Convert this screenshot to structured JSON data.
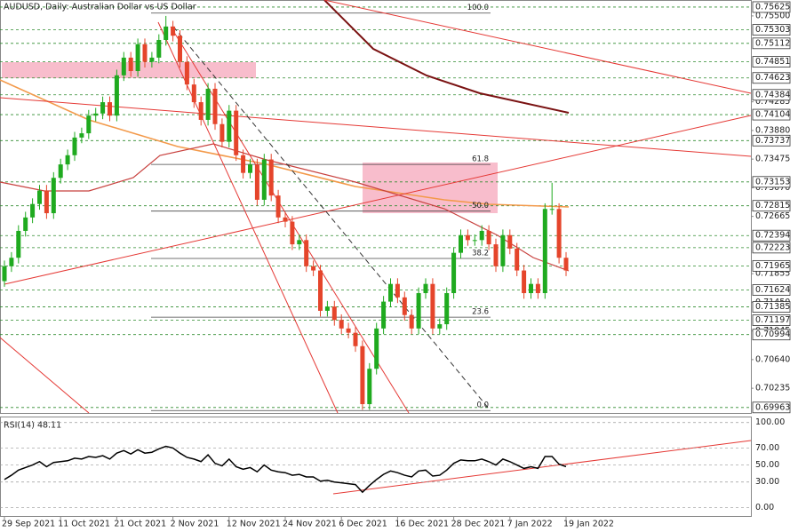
{
  "chart_data": [
    {
      "type": "candlestick",
      "title": "AUDUSD, Daily: Australian Dollar vs US Dollar",
      "categories": [
        "29 Sep 2021",
        null,
        null,
        null,
        null,
        null,
        null,
        null,
        "11 Oct 2021",
        null,
        null,
        null,
        null,
        null,
        null,
        null,
        "21 Oct 2021",
        null,
        null,
        null,
        null,
        null,
        null,
        null,
        "2 Nov 2021",
        null,
        null,
        null,
        null,
        null,
        null,
        null,
        "12 Nov 2021",
        null,
        null,
        null,
        null,
        null,
        null,
        null,
        "24 Nov 2021",
        null,
        null,
        null,
        null,
        null,
        null,
        null,
        "6 Dec 2021",
        null,
        null,
        null,
        null,
        null,
        null,
        null,
        "16 Dec 2021",
        null,
        null,
        null,
        null,
        null,
        null,
        null,
        "28 Dec 2021",
        null,
        null,
        null,
        null,
        null,
        null,
        null,
        "7 Jan 2022",
        null,
        null,
        null,
        null,
        null,
        null,
        null,
        "19 Jan 2022"
      ],
      "open": [
        0.7175,
        0.7196,
        0.7208,
        0.7246,
        0.7265,
        0.7284,
        0.7303,
        0.7271,
        0.7321,
        0.734,
        0.7353,
        0.7378,
        0.7384,
        0.7409,
        0.7412,
        0.7428,
        0.7409,
        0.7466,
        0.7491,
        0.7472,
        0.751,
        0.7485,
        0.7491,
        0.7516,
        0.7535,
        0.7522,
        0.7485,
        0.7453,
        0.7428,
        0.7403,
        0.7447,
        0.7397,
        0.7372,
        0.7416,
        0.7353,
        0.7328,
        0.734,
        0.729,
        0.7347,
        0.7296,
        0.7265,
        0.7259,
        0.7227,
        0.7233,
        0.7196,
        0.719,
        0.7133,
        0.7139,
        0.712,
        0.7108,
        0.7102,
        0.7083,
        0.7001,
        0.7051,
        0.7108,
        0.7146,
        0.7171,
        0.7152,
        0.7127,
        0.7108,
        0.7158,
        0.7171,
        0.7108,
        0.7114,
        0.7158,
        0.7215,
        0.724,
        0.7233,
        0.7233,
        0.7246,
        0.7227,
        0.7196,
        0.724,
        0.7221,
        0.719,
        0.7158,
        0.7171,
        0.7158,
        0.7277,
        0.7277,
        0.7208
      ],
      "high": [
        0.7204,
        0.7216,
        0.7254,
        0.7273,
        0.7292,
        0.7311,
        0.7311,
        0.7329,
        0.7348,
        0.7361,
        0.7386,
        0.7392,
        0.7417,
        0.742,
        0.7436,
        0.7436,
        0.7474,
        0.7499,
        0.7499,
        0.7518,
        0.7518,
        0.7499,
        0.7524,
        0.755,
        0.7543,
        0.753,
        0.7493,
        0.7461,
        0.7436,
        0.7455,
        0.7455,
        0.7405,
        0.7424,
        0.7424,
        0.7361,
        0.7348,
        0.7348,
        0.7355,
        0.7355,
        0.7304,
        0.7273,
        0.7267,
        0.7241,
        0.7241,
        0.7204,
        0.7198,
        0.7147,
        0.7147,
        0.7128,
        0.7116,
        0.711,
        0.7091,
        0.7059,
        0.7116,
        0.7154,
        0.7179,
        0.7179,
        0.716,
        0.7135,
        0.7166,
        0.7179,
        0.7179,
        0.7122,
        0.7166,
        0.7223,
        0.7248,
        0.7248,
        0.7241,
        0.7254,
        0.7254,
        0.7235,
        0.7248,
        0.7248,
        0.7229,
        0.7198,
        0.7179,
        0.7179,
        0.7285,
        0.7314,
        0.7285,
        0.7216
      ],
      "low": [
        0.7167,
        0.7188,
        0.72,
        0.7238,
        0.7257,
        0.7276,
        0.7263,
        0.7263,
        0.7313,
        0.7332,
        0.7345,
        0.737,
        0.7376,
        0.7401,
        0.7404,
        0.7401,
        0.7401,
        0.7458,
        0.7464,
        0.7464,
        0.7477,
        0.7477,
        0.7483,
        0.7508,
        0.7514,
        0.7477,
        0.7445,
        0.742,
        0.7395,
        0.7395,
        0.7389,
        0.7364,
        0.7364,
        0.7345,
        0.732,
        0.732,
        0.7282,
        0.7282,
        0.7288,
        0.7257,
        0.7251,
        0.7219,
        0.7219,
        0.7188,
        0.7182,
        0.7125,
        0.7125,
        0.7112,
        0.71,
        0.7094,
        0.7075,
        0.6993,
        0.6993,
        0.7043,
        0.71,
        0.7138,
        0.7144,
        0.7119,
        0.71,
        0.71,
        0.715,
        0.71,
        0.71,
        0.7106,
        0.715,
        0.7207,
        0.7225,
        0.7225,
        0.7225,
        0.7219,
        0.7188,
        0.7188,
        0.7213,
        0.7182,
        0.715,
        0.715,
        0.715,
        0.715,
        0.7269,
        0.72,
        0.7182
      ],
      "close": [
        0.7196,
        0.7208,
        0.7246,
        0.7265,
        0.7284,
        0.7303,
        0.7271,
        0.7321,
        0.734,
        0.7353,
        0.7378,
        0.7384,
        0.7409,
        0.7412,
        0.7428,
        0.7409,
        0.7466,
        0.7491,
        0.7472,
        0.751,
        0.7485,
        0.7491,
        0.7516,
        0.7535,
        0.7522,
        0.7485,
        0.7453,
        0.7428,
        0.7403,
        0.7447,
        0.7397,
        0.7372,
        0.7416,
        0.7353,
        0.7328,
        0.734,
        0.729,
        0.7347,
        0.7296,
        0.7265,
        0.7259,
        0.7227,
        0.7233,
        0.7196,
        0.719,
        0.7133,
        0.7139,
        0.712,
        0.7108,
        0.7102,
        0.7083,
        0.7001,
        0.7051,
        0.7108,
        0.7146,
        0.7171,
        0.7152,
        0.7127,
        0.7108,
        0.7158,
        0.7171,
        0.7108,
        0.7114,
        0.7158,
        0.7215,
        0.724,
        0.7233,
        0.7233,
        0.7246,
        0.7227,
        0.7196,
        0.724,
        0.7221,
        0.719,
        0.7158,
        0.7171,
        0.7158,
        0.7277,
        0.7277,
        0.7208,
        0.719
      ],
      "up_color": "#1faa1f",
      "down_color": "#e5452b",
      "level_color": "#2e8b2e",
      "ylim": [
        0.69885,
        0.75725
      ],
      "yticks": [
        {
          "value": 0.755,
          "label": "0.75500"
        },
        {
          "value": 0.74285,
          "label": "0.74285"
        },
        {
          "value": 0.7388,
          "label": "0.73880"
        },
        {
          "value": 0.73475,
          "label": "0.73475"
        },
        {
          "value": 0.7307,
          "label": "0.73070"
        },
        {
          "value": 0.72665,
          "label": "0.72665"
        },
        {
          "value": 0.71855,
          "label": "0.71855"
        },
        {
          "value": 0.7145,
          "label": "0.71450"
        },
        {
          "value": 0.71045,
          "label": "0.71045"
        },
        {
          "value": 0.7064,
          "label": "0.70640"
        },
        {
          "value": 0.70235,
          "label": "0.70235"
        }
      ],
      "levels": [
        {
          "value": 0.75625,
          "label": "0.75625"
        },
        {
          "value": 0.75303,
          "label": "0.75303"
        },
        {
          "value": 0.75112,
          "label": "0.75112"
        },
        {
          "value": 0.74851,
          "label": "0.74851"
        },
        {
          "value": 0.74623,
          "label": "0.74623"
        },
        {
          "value": 0.74384,
          "label": "0.74384"
        },
        {
          "value": 0.74104,
          "label": "0.74104"
        },
        {
          "value": 0.73737,
          "label": "0.73737"
        },
        {
          "value": 0.73153,
          "label": "0.73153"
        },
        {
          "value": 0.72815,
          "label": "0.72815"
        },
        {
          "value": 0.72394,
          "label": "0.72394"
        },
        {
          "value": 0.72223,
          "label": "0.72223"
        },
        {
          "value": 0.71965,
          "label": "0.71965"
        },
        {
          "value": 0.71624,
          "label": "0.71624"
        },
        {
          "value": 0.71385,
          "label": "0.71385"
        },
        {
          "value": 0.71197,
          "label": "0.71197"
        },
        {
          "value": 0.70994,
          "label": "0.70994"
        },
        {
          "value": 0.69963,
          "label": "0.69963"
        }
      ],
      "fib_levels": [
        {
          "value": 0.7554,
          "label": "100.0"
        },
        {
          "value": 0.734,
          "label": "61.8"
        },
        {
          "value": 0.7274,
          "label": "50.0"
        },
        {
          "value": 0.7207,
          "label": "38.2"
        },
        {
          "value": 0.7124,
          "label": "23.6"
        },
        {
          "value": 0.6992,
          "label": "0.0"
        }
      ]
    },
    {
      "type": "line",
      "title": "RSI(14) 48.11",
      "color": "#000000",
      "values": [
        33,
        38,
        44,
        47,
        50,
        54,
        48,
        53,
        54,
        55,
        58,
        57,
        60,
        59,
        61,
        57,
        64,
        67,
        63,
        68,
        64,
        65,
        69,
        72,
        70,
        64,
        59,
        57,
        54,
        62,
        52,
        49,
        57,
        48,
        45,
        47,
        42,
        50,
        44,
        42,
        41,
        38,
        39,
        36,
        36,
        31,
        32,
        30,
        29,
        28,
        27,
        18,
        26,
        33,
        39,
        43,
        41,
        38,
        36,
        43,
        44,
        37,
        38,
        44,
        52,
        56,
        55,
        55,
        57,
        54,
        50,
        57,
        54,
        50,
        46,
        48,
        46,
        60,
        60,
        51,
        48.11
      ],
      "ylim": [
        -10,
        106
      ],
      "yticks": [
        {
          "value": 100,
          "label": "100.00"
        },
        {
          "value": 70,
          "label": "70.00"
        },
        {
          "value": 50,
          "label": "50.00"
        },
        {
          "value": 30,
          "label": "30.00"
        },
        {
          "value": 0,
          "label": "0.00"
        }
      ]
    }
  ]
}
